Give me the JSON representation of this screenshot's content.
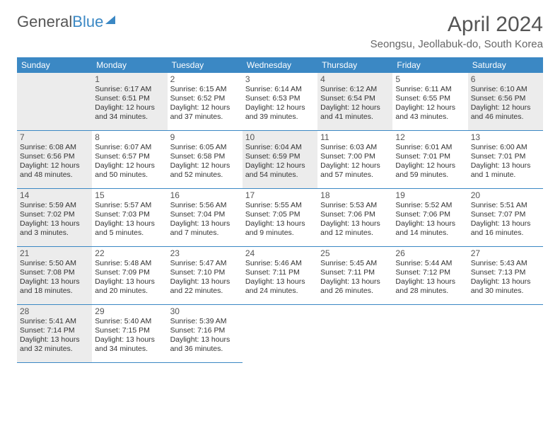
{
  "logo": {
    "text1": "General",
    "text2": "Blue"
  },
  "title": "April 2024",
  "location": "Seongsu, Jeollabuk-do, South Korea",
  "colors": {
    "header_bg": "#3b88c4",
    "header_text": "#ffffff",
    "shaded_bg": "#ececec",
    "border": "#3b88c4",
    "body_text": "#333333",
    "title_text": "#555555"
  },
  "day_headers": [
    "Sunday",
    "Monday",
    "Tuesday",
    "Wednesday",
    "Thursday",
    "Friday",
    "Saturday"
  ],
  "weeks": [
    [
      {
        "num": "",
        "sunrise": "",
        "sunset": "",
        "daylight": "",
        "shaded": true,
        "empty": true
      },
      {
        "num": "1",
        "sunrise": "Sunrise: 6:17 AM",
        "sunset": "Sunset: 6:51 PM",
        "daylight": "Daylight: 12 hours and 34 minutes.",
        "shaded": true
      },
      {
        "num": "2",
        "sunrise": "Sunrise: 6:15 AM",
        "sunset": "Sunset: 6:52 PM",
        "daylight": "Daylight: 12 hours and 37 minutes.",
        "shaded": false
      },
      {
        "num": "3",
        "sunrise": "Sunrise: 6:14 AM",
        "sunset": "Sunset: 6:53 PM",
        "daylight": "Daylight: 12 hours and 39 minutes.",
        "shaded": false
      },
      {
        "num": "4",
        "sunrise": "Sunrise: 6:12 AM",
        "sunset": "Sunset: 6:54 PM",
        "daylight": "Daylight: 12 hours and 41 minutes.",
        "shaded": true
      },
      {
        "num": "5",
        "sunrise": "Sunrise: 6:11 AM",
        "sunset": "Sunset: 6:55 PM",
        "daylight": "Daylight: 12 hours and 43 minutes.",
        "shaded": false
      },
      {
        "num": "6",
        "sunrise": "Sunrise: 6:10 AM",
        "sunset": "Sunset: 6:56 PM",
        "daylight": "Daylight: 12 hours and 46 minutes.",
        "shaded": true
      }
    ],
    [
      {
        "num": "7",
        "sunrise": "Sunrise: 6:08 AM",
        "sunset": "Sunset: 6:56 PM",
        "daylight": "Daylight: 12 hours and 48 minutes.",
        "shaded": true
      },
      {
        "num": "8",
        "sunrise": "Sunrise: 6:07 AM",
        "sunset": "Sunset: 6:57 PM",
        "daylight": "Daylight: 12 hours and 50 minutes.",
        "shaded": false
      },
      {
        "num": "9",
        "sunrise": "Sunrise: 6:05 AM",
        "sunset": "Sunset: 6:58 PM",
        "daylight": "Daylight: 12 hours and 52 minutes.",
        "shaded": false
      },
      {
        "num": "10",
        "sunrise": "Sunrise: 6:04 AM",
        "sunset": "Sunset: 6:59 PM",
        "daylight": "Daylight: 12 hours and 54 minutes.",
        "shaded": true
      },
      {
        "num": "11",
        "sunrise": "Sunrise: 6:03 AM",
        "sunset": "Sunset: 7:00 PM",
        "daylight": "Daylight: 12 hours and 57 minutes.",
        "shaded": false
      },
      {
        "num": "12",
        "sunrise": "Sunrise: 6:01 AM",
        "sunset": "Sunset: 7:01 PM",
        "daylight": "Daylight: 12 hours and 59 minutes.",
        "shaded": false
      },
      {
        "num": "13",
        "sunrise": "Sunrise: 6:00 AM",
        "sunset": "Sunset: 7:01 PM",
        "daylight": "Daylight: 13 hours and 1 minute.",
        "shaded": false
      }
    ],
    [
      {
        "num": "14",
        "sunrise": "Sunrise: 5:59 AM",
        "sunset": "Sunset: 7:02 PM",
        "daylight": "Daylight: 13 hours and 3 minutes.",
        "shaded": true
      },
      {
        "num": "15",
        "sunrise": "Sunrise: 5:57 AM",
        "sunset": "Sunset: 7:03 PM",
        "daylight": "Daylight: 13 hours and 5 minutes.",
        "shaded": false
      },
      {
        "num": "16",
        "sunrise": "Sunrise: 5:56 AM",
        "sunset": "Sunset: 7:04 PM",
        "daylight": "Daylight: 13 hours and 7 minutes.",
        "shaded": false
      },
      {
        "num": "17",
        "sunrise": "Sunrise: 5:55 AM",
        "sunset": "Sunset: 7:05 PM",
        "daylight": "Daylight: 13 hours and 9 minutes.",
        "shaded": false
      },
      {
        "num": "18",
        "sunrise": "Sunrise: 5:53 AM",
        "sunset": "Sunset: 7:06 PM",
        "daylight": "Daylight: 13 hours and 12 minutes.",
        "shaded": false
      },
      {
        "num": "19",
        "sunrise": "Sunrise: 5:52 AM",
        "sunset": "Sunset: 7:06 PM",
        "daylight": "Daylight: 13 hours and 14 minutes.",
        "shaded": false
      },
      {
        "num": "20",
        "sunrise": "Sunrise: 5:51 AM",
        "sunset": "Sunset: 7:07 PM",
        "daylight": "Daylight: 13 hours and 16 minutes.",
        "shaded": false
      }
    ],
    [
      {
        "num": "21",
        "sunrise": "Sunrise: 5:50 AM",
        "sunset": "Sunset: 7:08 PM",
        "daylight": "Daylight: 13 hours and 18 minutes.",
        "shaded": true
      },
      {
        "num": "22",
        "sunrise": "Sunrise: 5:48 AM",
        "sunset": "Sunset: 7:09 PM",
        "daylight": "Daylight: 13 hours and 20 minutes.",
        "shaded": false
      },
      {
        "num": "23",
        "sunrise": "Sunrise: 5:47 AM",
        "sunset": "Sunset: 7:10 PM",
        "daylight": "Daylight: 13 hours and 22 minutes.",
        "shaded": false
      },
      {
        "num": "24",
        "sunrise": "Sunrise: 5:46 AM",
        "sunset": "Sunset: 7:11 PM",
        "daylight": "Daylight: 13 hours and 24 minutes.",
        "shaded": false
      },
      {
        "num": "25",
        "sunrise": "Sunrise: 5:45 AM",
        "sunset": "Sunset: 7:11 PM",
        "daylight": "Daylight: 13 hours and 26 minutes.",
        "shaded": false
      },
      {
        "num": "26",
        "sunrise": "Sunrise: 5:44 AM",
        "sunset": "Sunset: 7:12 PM",
        "daylight": "Daylight: 13 hours and 28 minutes.",
        "shaded": false
      },
      {
        "num": "27",
        "sunrise": "Sunrise: 5:43 AM",
        "sunset": "Sunset: 7:13 PM",
        "daylight": "Daylight: 13 hours and 30 minutes.",
        "shaded": false
      }
    ],
    [
      {
        "num": "28",
        "sunrise": "Sunrise: 5:41 AM",
        "sunset": "Sunset: 7:14 PM",
        "daylight": "Daylight: 13 hours and 32 minutes.",
        "shaded": true
      },
      {
        "num": "29",
        "sunrise": "Sunrise: 5:40 AM",
        "sunset": "Sunset: 7:15 PM",
        "daylight": "Daylight: 13 hours and 34 minutes.",
        "shaded": false
      },
      {
        "num": "30",
        "sunrise": "Sunrise: 5:39 AM",
        "sunset": "Sunset: 7:16 PM",
        "daylight": "Daylight: 13 hours and 36 minutes.",
        "shaded": false
      },
      {
        "num": "",
        "sunrise": "",
        "sunset": "",
        "daylight": "",
        "shaded": false,
        "empty": true
      },
      {
        "num": "",
        "sunrise": "",
        "sunset": "",
        "daylight": "",
        "shaded": false,
        "empty": true
      },
      {
        "num": "",
        "sunrise": "",
        "sunset": "",
        "daylight": "",
        "shaded": false,
        "empty": true
      },
      {
        "num": "",
        "sunrise": "",
        "sunset": "",
        "daylight": "",
        "shaded": false,
        "empty": true
      }
    ]
  ]
}
